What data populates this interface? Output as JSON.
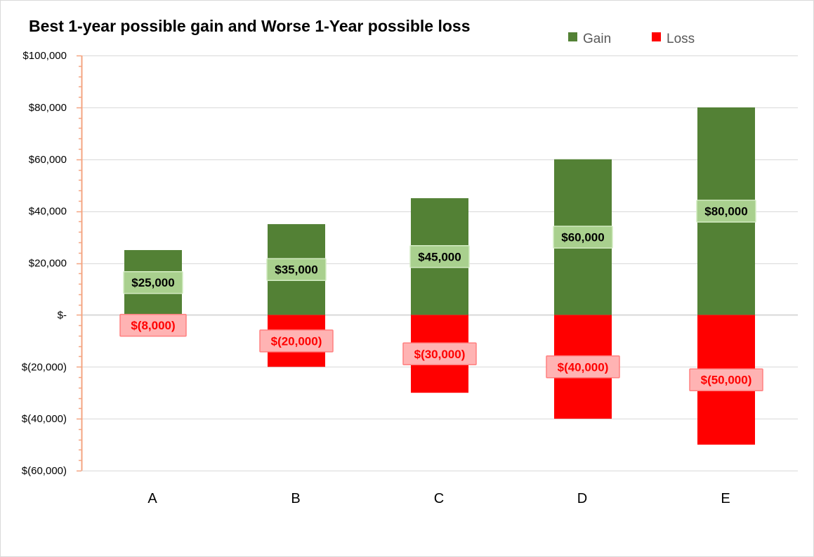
{
  "chart_data": {
    "type": "bar",
    "title": "Best 1-year possible gain and Worse 1-Year possible loss",
    "categories": [
      "A",
      "B",
      "C",
      "D",
      "E"
    ],
    "series": [
      {
        "name": "Gain",
        "color": "#538135",
        "label_bg": "#a9d08e",
        "label_text_color": "#000000",
        "values": [
          25000,
          35000,
          45000,
          60000,
          80000
        ],
        "labels": [
          "$25,000",
          "$35,000",
          "$45,000",
          "$60,000",
          "$80,000"
        ]
      },
      {
        "name": "Loss",
        "color": "#ff0000",
        "label_bg": "#ffb3b3",
        "label_text_color": "#ff0000",
        "values": [
          -8000,
          -20000,
          -30000,
          -40000,
          -50000
        ],
        "labels": [
          "$(8,000)",
          "$(20,000)",
          "$(30,000)",
          "$(40,000)",
          "$(50,000)"
        ]
      }
    ],
    "y_ticks": [
      100000,
      80000,
      60000,
      40000,
      20000,
      0,
      -20000,
      -40000,
      -60000
    ],
    "y_tick_labels": [
      "$100,000",
      "$80,000",
      "$60,000",
      "$40,000",
      "$20,000",
      "$-",
      "$(20,000)",
      "$(40,000)",
      "$(60,000)"
    ],
    "ylim": [
      -60000,
      100000
    ],
    "grid": true,
    "legend_position": "top-right",
    "axis_color": "#f4a582",
    "grid_color": "#d9d9d9"
  }
}
